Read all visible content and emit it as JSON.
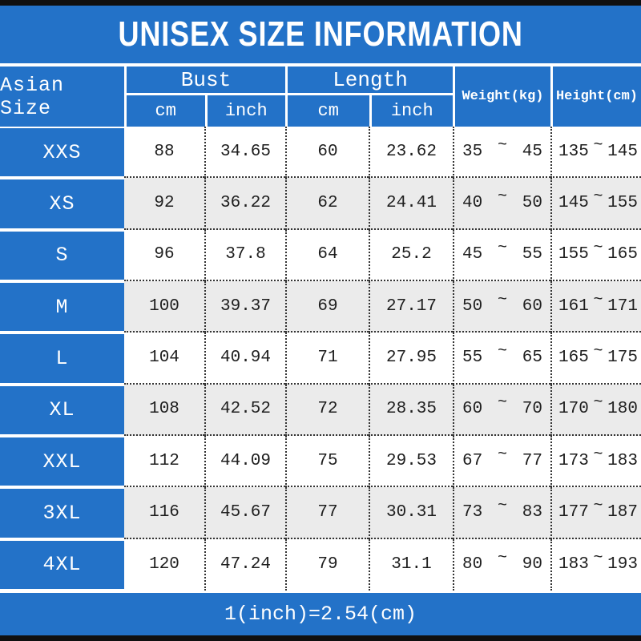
{
  "title": "UNISEX SIZE INFORMATION",
  "header": {
    "asian_size": "Asian Size",
    "bust": "Bust",
    "length": "Length",
    "cm": "cm",
    "inch": "inch",
    "weight": "Weight(kg)",
    "height": "Height(cm)"
  },
  "tilde": "~",
  "rows": [
    {
      "size": "XXS",
      "bust_cm": "88",
      "bust_inch": "34.65",
      "length_cm": "60",
      "length_inch": "23.62",
      "weight_min": "35",
      "weight_max": "45",
      "height_min": "135",
      "height_max": "145"
    },
    {
      "size": "XS",
      "bust_cm": "92",
      "bust_inch": "36.22",
      "length_cm": "62",
      "length_inch": "24.41",
      "weight_min": "40",
      "weight_max": "50",
      "height_min": "145",
      "height_max": "155"
    },
    {
      "size": "S",
      "bust_cm": "96",
      "bust_inch": "37.8",
      "length_cm": "64",
      "length_inch": "25.2",
      "weight_min": "45",
      "weight_max": "55",
      "height_min": "155",
      "height_max": "165"
    },
    {
      "size": "M",
      "bust_cm": "100",
      "bust_inch": "39.37",
      "length_cm": "69",
      "length_inch": "27.17",
      "weight_min": "50",
      "weight_max": "60",
      "height_min": "161",
      "height_max": "171"
    },
    {
      "size": "L",
      "bust_cm": "104",
      "bust_inch": "40.94",
      "length_cm": "71",
      "length_inch": "27.95",
      "weight_min": "55",
      "weight_max": "65",
      "height_min": "165",
      "height_max": "175"
    },
    {
      "size": "XL",
      "bust_cm": "108",
      "bust_inch": "42.52",
      "length_cm": "72",
      "length_inch": "28.35",
      "weight_min": "60",
      "weight_max": "70",
      "height_min": "170",
      "height_max": "180"
    },
    {
      "size": "XXL",
      "bust_cm": "112",
      "bust_inch": "44.09",
      "length_cm": "75",
      "length_inch": "29.53",
      "weight_min": "67",
      "weight_max": "77",
      "height_min": "173",
      "height_max": "183"
    },
    {
      "size": "3XL",
      "bust_cm": "116",
      "bust_inch": "45.67",
      "length_cm": "77",
      "length_inch": "30.31",
      "weight_min": "73",
      "weight_max": "83",
      "height_min": "177",
      "height_max": "187"
    },
    {
      "size": "4XL",
      "bust_cm": "120",
      "bust_inch": "47.24",
      "length_cm": "79",
      "length_inch": "31.1",
      "weight_min": "80",
      "weight_max": "90",
      "height_min": "183",
      "height_max": "193"
    }
  ],
  "footer": "1(inch)=2.54(cm)",
  "colors": {
    "accent_blue": "#2372c8",
    "alt_row_gray": "#ebebeb",
    "edge_bar_black": "#101010",
    "body_text": "#1e1e1e",
    "header_text": "#ffffff"
  },
  "chart_data": {
    "type": "table",
    "title": "UNISEX SIZE INFORMATION",
    "columns": [
      "Asian Size",
      "Bust cm",
      "Bust inch",
      "Length cm",
      "Length inch",
      "Weight(kg)",
      "Height(cm)"
    ],
    "rows": [
      [
        "XXS",
        88,
        34.65,
        60,
        23.62,
        "35~45",
        "135~145"
      ],
      [
        "XS",
        92,
        36.22,
        62,
        24.41,
        "40~50",
        "145~155"
      ],
      [
        "S",
        96,
        37.8,
        64,
        25.2,
        "45~55",
        "155~165"
      ],
      [
        "M",
        100,
        39.37,
        69,
        27.17,
        "50~60",
        "161~171"
      ],
      [
        "L",
        104,
        40.94,
        71,
        27.95,
        "55~65",
        "165~175"
      ],
      [
        "XL",
        108,
        42.52,
        72,
        28.35,
        "60~70",
        "170~180"
      ],
      [
        "XXL",
        112,
        44.09,
        75,
        29.53,
        "67~77",
        "173~183"
      ],
      [
        "3XL",
        116,
        45.67,
        77,
        30.31,
        "73~83",
        "177~187"
      ],
      [
        "4XL",
        120,
        47.24,
        79,
        31.1,
        "80~90",
        "183~193"
      ]
    ],
    "footnote": "1(inch)=2.54(cm)"
  }
}
